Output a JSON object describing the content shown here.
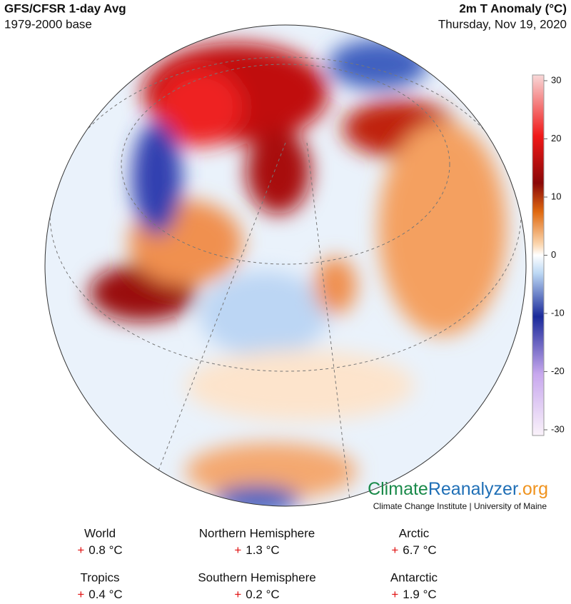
{
  "header": {
    "title": "GFS/CFSR 1-day Avg",
    "subtitle": "1979-2000 base",
    "variable": "2m T Anomaly (°C)",
    "date": "Thursday, Nov 19, 2020"
  },
  "colorbar": {
    "lim": [
      -30,
      30
    ],
    "ticks": [
      30,
      20,
      10,
      0,
      -10,
      -20,
      -30
    ]
  },
  "logo": {
    "part1": "Climate",
    "part2": "Reanalyzer",
    "part3": ".org",
    "credit": "Climate Change Institute | University of Maine"
  },
  "stats": [
    {
      "region": "World",
      "sign": "+",
      "value": "0.8 °C"
    },
    {
      "region": "Northern Hemisphere",
      "sign": "+",
      "value": "1.3 °C"
    },
    {
      "region": "Arctic",
      "sign": "+",
      "value": "6.7 °C"
    },
    {
      "region": "Tropics",
      "sign": "+",
      "value": "0.4 °C"
    },
    {
      "region": "Southern Hemisphere",
      "sign": "+",
      "value": "0.2 °C"
    },
    {
      "region": "Antarctic",
      "sign": "+",
      "value": "1.9 °C"
    }
  ]
}
